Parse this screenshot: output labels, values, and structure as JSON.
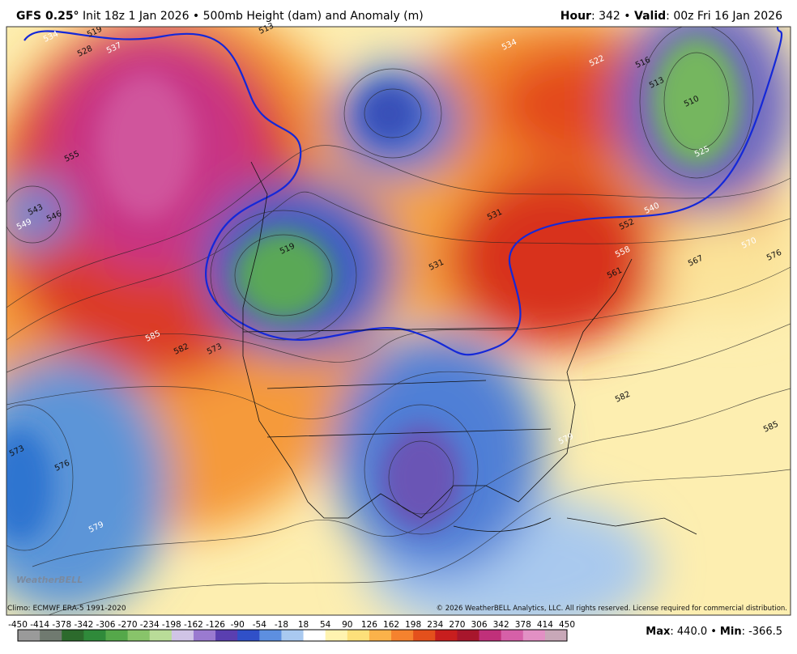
{
  "header": {
    "model": "GFS 0.25°",
    "description": "Init 18z 1 Jan 2026 • 500mb Height (dam) and Anomaly (m)",
    "hour_label": "Hour",
    "hour_value": ": 342 •",
    "valid_label": "Valid",
    "valid_value": ": 00z Fri 16 Jan 2026"
  },
  "map": {
    "contour_labels": [
      "534",
      "519",
      "528",
      "537",
      "513",
      "555",
      "549",
      "543",
      "546",
      "585",
      "582",
      "573",
      "522",
      "519",
      "531",
      "540",
      "552",
      "561",
      "570",
      "576",
      "567",
      "558",
      "585",
      "582",
      "579",
      "573",
      "576",
      "579",
      "510",
      "516",
      "525",
      "513",
      "531",
      "534"
    ],
    "brand": "WeatherBELL"
  },
  "footer": {
    "climo": "Climo: ECMWF ERA-5 1991-2020",
    "copyright": "© 2026 WeatherBELL Analytics, LLC. All rights reserved. License required for commercial distribution.",
    "max_label": "Max",
    "max_value": ": 440.0 •",
    "min_label": "Min",
    "min_value": ": -366.5"
  },
  "colorbar": {
    "ticks": [
      -450,
      -414,
      -378,
      -342,
      -306,
      -270,
      -234,
      -198,
      -162,
      -126,
      -90,
      -54,
      -18,
      18,
      54,
      90,
      126,
      162,
      198,
      234,
      270,
      306,
      342,
      378,
      414,
      450
    ]
  }
}
